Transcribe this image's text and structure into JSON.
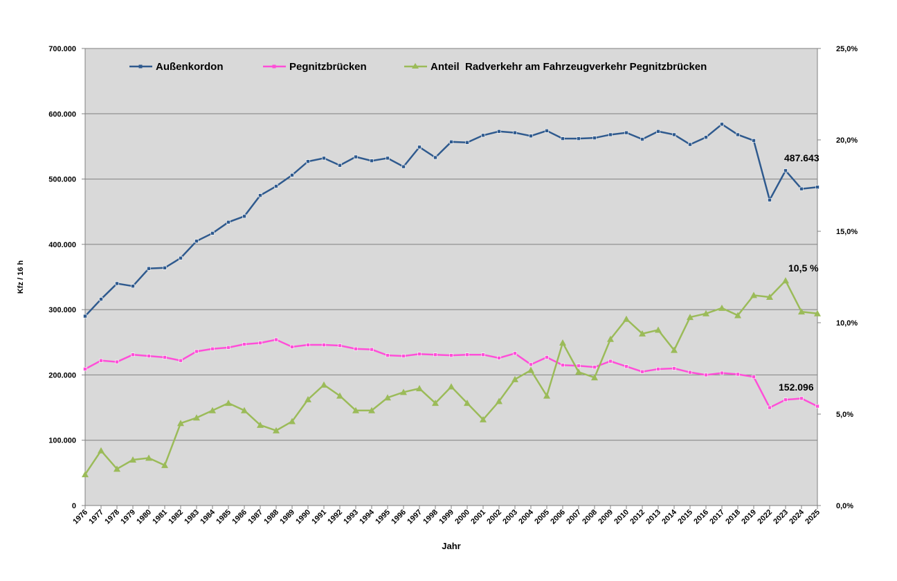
{
  "chart_data": {
    "type": "line",
    "xlabel": "Jahr",
    "ylabel": "Kfz / 16 h",
    "ylim": [
      0,
      700000
    ],
    "y2lim": [
      0,
      25
    ],
    "grid": true,
    "legend_placement": "top",
    "y_ticks": [
      "0",
      "100.000",
      "200.000",
      "300.000",
      "400.000",
      "500.000",
      "600.000",
      "700.000"
    ],
    "y2_ticks": [
      "0,0%",
      "5,0%",
      "10,0%",
      "15,0%",
      "20,0%",
      "25,0%"
    ],
    "categories": [
      "1976",
      "1977",
      "1978",
      "1979",
      "1980",
      "1981",
      "1982",
      "1983",
      "1984",
      "1985",
      "1986",
      "1987",
      "1988",
      "1989",
      "1990",
      "1991",
      "1992",
      "1993",
      "1994",
      "1995",
      "1996",
      "1997",
      "1998",
      "1999",
      "2000",
      "2001",
      "2002",
      "2003",
      "2004",
      "2005",
      "2006",
      "2007",
      "2008",
      "2009",
      "2010",
      "2012",
      "2013",
      "2014",
      "2015",
      "2016",
      "2017",
      "2018",
      "2019",
      "2022",
      "2023",
      "2024",
      "2025"
    ],
    "series": [
      {
        "name": "Außenkordon",
        "axis": "left",
        "color": "#2f5a8e",
        "marker": "square",
        "values": [
          290000,
          316000,
          340000,
          336000,
          363000,
          364000,
          379000,
          405000,
          417000,
          434000,
          443000,
          475000,
          489000,
          506000,
          527000,
          532000,
          521000,
          534000,
          528000,
          532000,
          519000,
          549000,
          533000,
          557000,
          556000,
          567000,
          573000,
          571000,
          566000,
          574000,
          562000,
          562000,
          563000,
          568000,
          571000,
          561000,
          573000,
          568000,
          553000,
          564000,
          584000,
          568000,
          559000,
          468000,
          513000,
          485000,
          487643
        ]
      },
      {
        "name": "Pegnitzbrücken",
        "axis": "left",
        "color": "#ff4fd8",
        "marker": "square",
        "values": [
          209000,
          222000,
          220000,
          231000,
          229000,
          227000,
          222000,
          236000,
          240000,
          242000,
          247000,
          249000,
          254000,
          243000,
          246000,
          246000,
          245000,
          240000,
          239000,
          230000,
          229000,
          232000,
          231000,
          230000,
          231000,
          231000,
          226000,
          233000,
          216000,
          227000,
          215000,
          214000,
          212000,
          221000,
          213000,
          205000,
          209000,
          210000,
          204000,
          200000,
          203000,
          201000,
          197000,
          150000,
          162000,
          164000,
          152096
        ]
      },
      {
        "name": "Anteil  Radverkehr am Fahrzeugverkehr Pegnitzbrücken",
        "axis": "right",
        "color": "#9bbb59",
        "marker": "triangle",
        "values": [
          1.7,
          3.0,
          2.0,
          2.5,
          2.6,
          2.2,
          4.5,
          4.8,
          5.2,
          5.6,
          5.2,
          4.4,
          4.1,
          4.6,
          5.8,
          6.6,
          6.0,
          5.2,
          5.2,
          5.9,
          6.2,
          6.4,
          5.6,
          6.5,
          5.6,
          4.7,
          5.7,
          6.9,
          7.4,
          6.0,
          8.9,
          7.3,
          7.0,
          9.1,
          10.2,
          9.4,
          9.6,
          8.5,
          10.3,
          10.5,
          10.8,
          10.4,
          11.5,
          11.4,
          12.3,
          10.6,
          10.5
        ]
      }
    ],
    "annotations": [
      "487.643",
      "10,5 %",
      "152.096"
    ]
  },
  "colors": {
    "plot_bg": "#d9d9d9",
    "grid": "#808080"
  }
}
